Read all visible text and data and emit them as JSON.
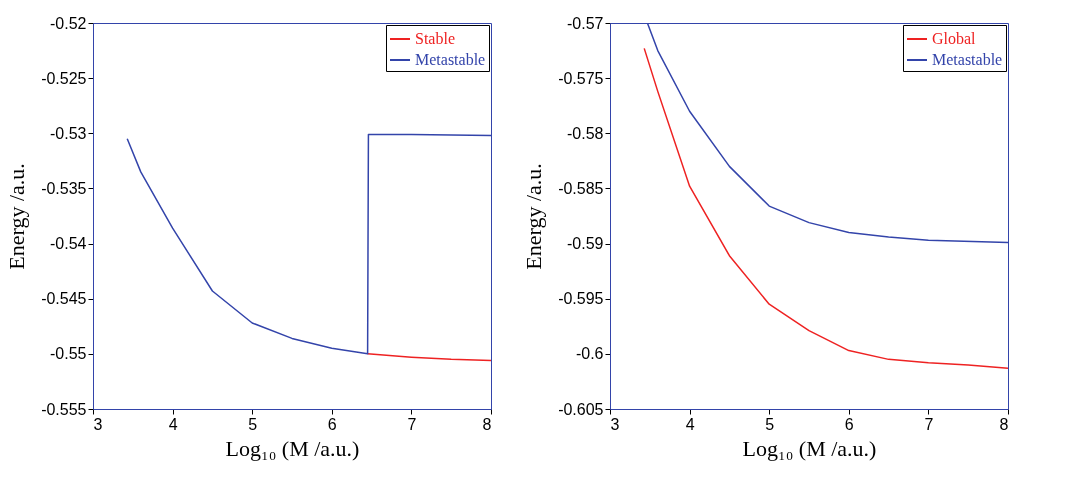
{
  "chart_data": [
    {
      "type": "line",
      "xlabel": "Log₁₀ (M /a.u.)",
      "ylabel": "Energy /a.u.",
      "xlim": [
        3,
        8
      ],
      "xticks": [
        3,
        4,
        5,
        6,
        7,
        8
      ],
      "ylim": [
        -0.555,
        -0.52
      ],
      "yticks": [
        -0.555,
        -0.55,
        -0.545,
        -0.54,
        -0.535,
        -0.53,
        -0.525,
        -0.52
      ],
      "grid": false,
      "legend": "top right",
      "series": [
        {
          "name": "Stable",
          "color": "#ee2222",
          "x": [
            6.45,
            7,
            7.5,
            8
          ],
          "values": [
            -0.55,
            -0.5503,
            -0.5505,
            -0.5506
          ]
        },
        {
          "name": "Metastable",
          "color": "#3344aa",
          "x": [
            3.43,
            3.6,
            4,
            4.5,
            5,
            5.5,
            6,
            6.45,
            6.46,
            7,
            8
          ],
          "values": [
            -0.5305,
            -0.5335,
            -0.5386,
            -0.5443,
            -0.5472,
            -0.5486,
            -0.5495,
            -0.55,
            -0.5301,
            -0.5301,
            -0.5302
          ]
        }
      ]
    },
    {
      "type": "line",
      "xlabel": "Log₁₀ (M /a.u.)",
      "ylabel": "Energy /a.u.",
      "xlim": [
        3,
        8
      ],
      "xticks": [
        3,
        4,
        5,
        6,
        7,
        8
      ],
      "ylim": [
        -0.605,
        -0.57
      ],
      "yticks": [
        -0.605,
        -0.6,
        -0.595,
        -0.59,
        -0.585,
        -0.58,
        -0.575,
        -0.57
      ],
      "grid": false,
      "legend": "top right",
      "series": [
        {
          "name": "Global",
          "color": "#ee2222",
          "x": [
            3.43,
            3.6,
            4,
            4.5,
            5,
            5.5,
            6,
            6.5,
            7,
            7.5,
            8
          ],
          "values": [
            -0.5723,
            -0.5762,
            -0.5848,
            -0.5911,
            -0.5955,
            -0.5979,
            -0.5997,
            -0.6005,
            -0.6008,
            -0.601,
            -0.6013
          ]
        },
        {
          "name": "Metastable",
          "color": "#3344aa",
          "x": [
            3.47,
            3.6,
            4,
            4.5,
            5,
            5.5,
            6,
            6.5,
            7,
            8
          ],
          "values": [
            -0.57,
            -0.5725,
            -0.578,
            -0.583,
            -0.5866,
            -0.5881,
            -0.589,
            -0.5894,
            -0.5897,
            -0.5899
          ]
        }
      ]
    }
  ]
}
